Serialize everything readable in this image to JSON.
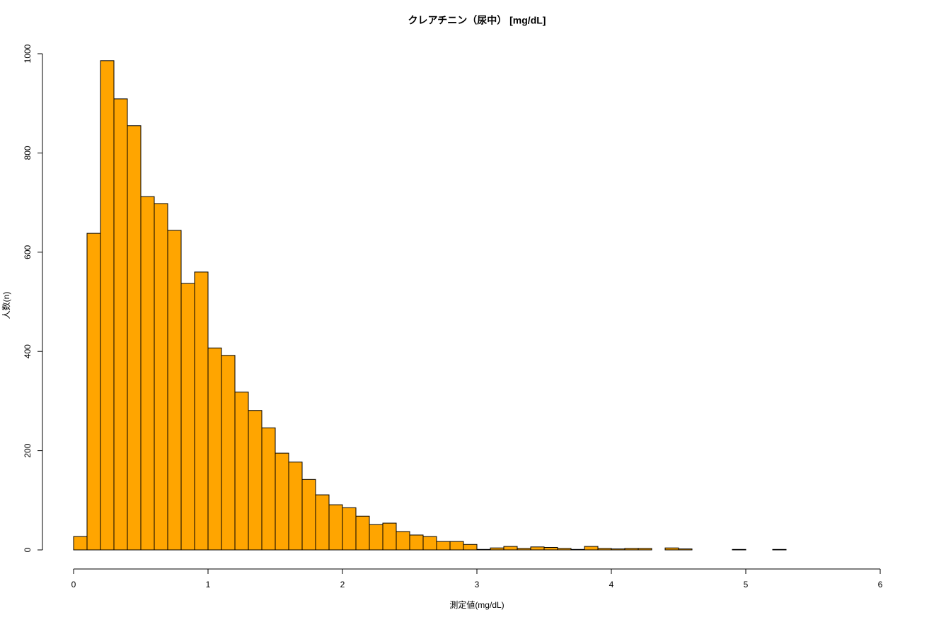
{
  "chart_data": {
    "type": "histogram",
    "title": "クレアチニン（尿中） [mg/dL]",
    "x_label": "測定値(mg/dL)",
    "y_label": "人数(n)",
    "color": "#ffa500",
    "bins": [
      0,
      0.1,
      0.2,
      0.3,
      0.4,
      0.5,
      0.6,
      0.7,
      0.8,
      0.9,
      1.0,
      1.1,
      1.2,
      1.3,
      1.4,
      1.5,
      1.6,
      1.7,
      1.8,
      1.9,
      2.0,
      2.1,
      2.2,
      2.3,
      2.4,
      2.5,
      2.6,
      2.7,
      2.8,
      2.9,
      3.0,
      3.1,
      3.2,
      3.3,
      3.4,
      3.5,
      3.6,
      3.7,
      3.8,
      3.9,
      4.0,
      4.1,
      4.2,
      4.3,
      4.4,
      4.5,
      4.6,
      4.7,
      4.8,
      4.9,
      5.0,
      5.1,
      5.2,
      5.3
    ],
    "counts": [
      27,
      638,
      986,
      909,
      855,
      712,
      698,
      644,
      537,
      560,
      407,
      392,
      318,
      281,
      246,
      195,
      177,
      142,
      111,
      91,
      85,
      68,
      51,
      54,
      37,
      30,
      27,
      17,
      17,
      11,
      1,
      4,
      7,
      3,
      6,
      5,
      3,
      1,
      7,
      3,
      2,
      3,
      3,
      0,
      4,
      2,
      0,
      0,
      0,
      1,
      0,
      0,
      1
    ],
    "xlim": [
      0,
      6
    ],
    "xticks": [
      0,
      1,
      2,
      3,
      4,
      5,
      6
    ],
    "ylim": [
      0,
      1000
    ],
    "yticks": [
      0,
      200,
      400,
      600,
      800,
      1000
    ]
  }
}
